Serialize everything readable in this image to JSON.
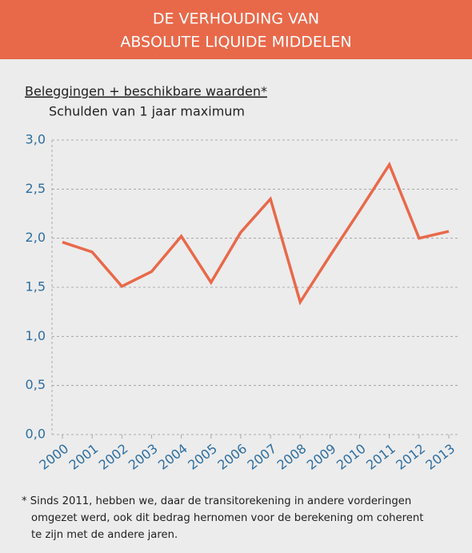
{
  "chart_data": {
    "type": "line",
    "title": [
      "DE VERHOUDING VAN",
      "ABSOLUTE LIQUIDE MIDDELEN"
    ],
    "numerator_label": "Beleggingen + beschikbare waarden*",
    "denominator_label": "Schulden van  1 jaar maximum",
    "categories": [
      "2000",
      "2001",
      "2002",
      "2003",
      "2004",
      "2005",
      "2006",
      "2007",
      "2008",
      "2009",
      "2010",
      "2011",
      "2012",
      "2013"
    ],
    "series": [
      {
        "name": "Verhouding",
        "color": "#e8694a",
        "values": [
          1.96,
          1.86,
          1.51,
          1.66,
          2.02,
          1.55,
          2.06,
          2.4,
          1.35,
          1.82,
          2.28,
          2.75,
          2.0,
          2.07
        ]
      }
    ],
    "ylim": [
      0,
      3
    ],
    "yticks": [
      {
        "value": 0,
        "label": "0,0"
      },
      {
        "value": 0.5,
        "label": "0,5"
      },
      {
        "value": 1,
        "label": "1,0"
      },
      {
        "value": 1.5,
        "label": "1,5"
      },
      {
        "value": 2,
        "label": "2,0"
      },
      {
        "value": 2.5,
        "label": "2,5"
      },
      {
        "value": 3,
        "label": "3,0"
      }
    ],
    "grid": true,
    "footnote": [
      "* Sinds 2011, hebben we, daar de transitorekening in andere vorderingen",
      "omgezet werd, ook dit bedrag hernomen voor de berekening om coherent",
      "te zijn met de andere jaren."
    ]
  }
}
